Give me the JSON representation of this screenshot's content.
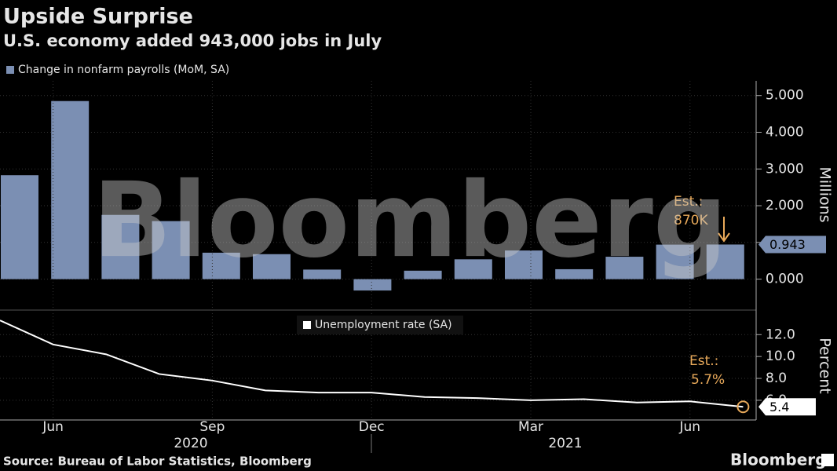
{
  "title": "Upside Surprise",
  "subtitle": "U.S. economy added 943,000 jobs in July",
  "source": "Source: Bureau of Labor Statistics, Bloomberg",
  "watermark": "Bloomberg",
  "brand": "Bloomberg",
  "chart_data": [
    {
      "type": "bar",
      "series": [
        {
          "name": "Change in nonfarm payrolls (MoM, SA)",
          "color": "#7b8fb3",
          "values": [
            2.83,
            4.85,
            1.75,
            1.58,
            0.72,
            0.68,
            0.26,
            -0.31,
            0.23,
            0.54,
            0.78,
            0.27,
            0.61,
            0.94,
            0.943
          ]
        }
      ],
      "ylabel": "Millions",
      "ylim": [
        -0.8,
        5.4
      ],
      "yticks": [
        {
          "value": 0,
          "label": "0.000"
        },
        {
          "value": 1,
          "label": "1.000"
        },
        {
          "value": 2,
          "label": "2.000"
        },
        {
          "value": 3,
          "label": "3.000"
        },
        {
          "value": 4,
          "label": "4.000"
        },
        {
          "value": 5,
          "label": "5.000"
        }
      ],
      "annotation": [
        "Est.:",
        "870K"
      ],
      "annotation_color": "#e8a95a",
      "grid": true
    },
    {
      "type": "line",
      "categories": [
        null,
        "Jun",
        null,
        null,
        "Sep",
        null,
        null,
        "Dec",
        null,
        null,
        "Mar",
        null,
        null,
        "Jun",
        null
      ],
      "year_labels": [
        "2020",
        "2021"
      ],
      "series": [
        {
          "name": "Unemployment rate (SA)",
          "color": "#ffffff",
          "values": [
            13.3,
            11.1,
            10.2,
            8.4,
            7.8,
            6.9,
            6.7,
            6.7,
            6.3,
            6.2,
            6.0,
            6.1,
            5.8,
            5.9,
            5.4
          ]
        }
      ],
      "ylabel": "Percent",
      "ylim": [
        4.2,
        14.1
      ],
      "yticks": [
        {
          "value": 6,
          "label": "6.0"
        },
        {
          "value": 8,
          "label": "8.0"
        },
        {
          "value": 10,
          "label": "10.0"
        },
        {
          "value": 12,
          "label": "12.0"
        }
      ],
      "annotation": [
        "Est.:",
        "5.7%"
      ],
      "annotation_color": "#e8a95a",
      "grid": true
    }
  ]
}
